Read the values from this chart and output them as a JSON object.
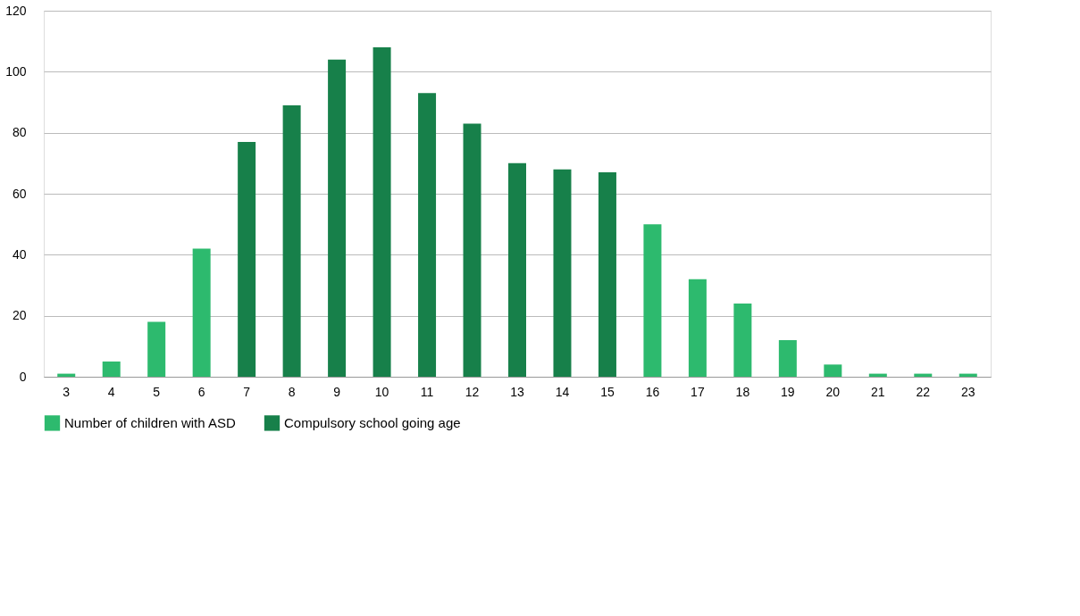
{
  "chart_data": {
    "type": "bar",
    "categories": [
      "3",
      "4",
      "5",
      "6",
      "7",
      "8",
      "9",
      "10",
      "11",
      "12",
      "13",
      "14",
      "15",
      "16",
      "17",
      "18",
      "19",
      "20",
      "21",
      "22",
      "23"
    ],
    "series": [
      {
        "name": "Number of children with ASD",
        "color": "#2dba6e",
        "values": [
          1,
          5,
          18,
          42,
          null,
          null,
          null,
          null,
          null,
          null,
          null,
          null,
          null,
          50,
          32,
          24,
          12,
          4,
          1,
          1,
          1
        ]
      },
      {
        "name": "Compulsory school going age",
        "color": "#17804a",
        "values": [
          null,
          null,
          null,
          null,
          77,
          89,
          104,
          108,
          93,
          83,
          70,
          68,
          67,
          null,
          null,
          null,
          null,
          null,
          null,
          null,
          null
        ]
      }
    ],
    "ylim": [
      0,
      120
    ],
    "yticks": [
      0,
      20,
      40,
      60,
      80,
      100,
      120
    ],
    "grid": "y",
    "legend": "bottom"
  }
}
